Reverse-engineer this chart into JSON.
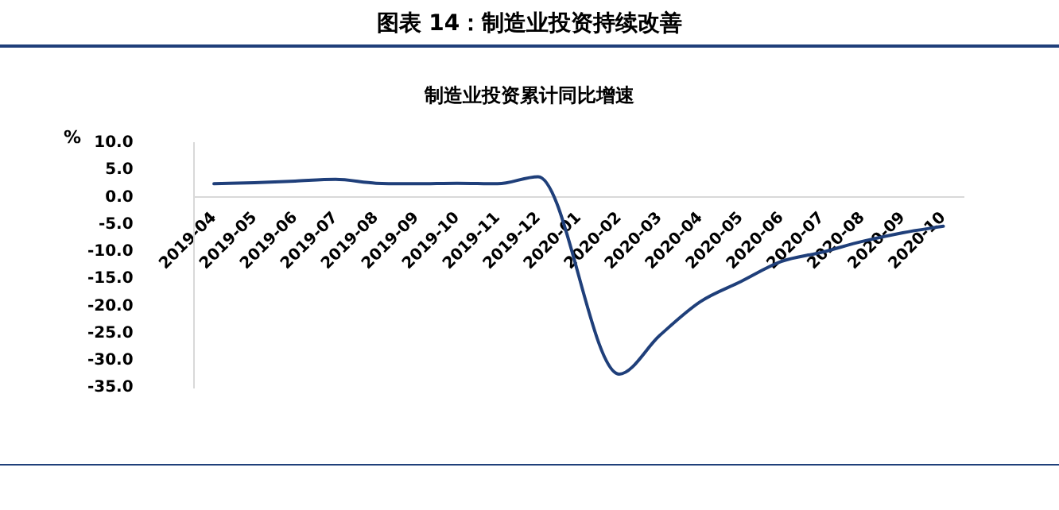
{
  "chart_data": {
    "type": "line",
    "title": "图表 14：制造业投资持续改善",
    "subtitle": "制造业投资累计同比增速",
    "ylabel": "%",
    "categories": [
      "2019-04",
      "2019-05",
      "2019-06",
      "2019-07",
      "2019-08",
      "2019-09",
      "2019-10",
      "2019-11",
      "2019-12",
      "2020-01",
      "2020-02",
      "2020-03",
      "2020-04",
      "2020-05",
      "2020-06",
      "2020-07",
      "2020-08",
      "2020-09",
      "2020-10"
    ],
    "series": [
      {
        "color": "#1f3f7a",
        "values": [
          2.5,
          2.7,
          3.0,
          3.3,
          2.6,
          2.5,
          2.6,
          2.5,
          3.8,
          null,
          -32.5,
          -25.4,
          -19.2,
          -15.5,
          -11.8,
          -10.1,
          -8.1,
          -6.5,
          -5.3
        ]
      }
    ],
    "ylim": [
      -35,
      10
    ],
    "yticks": [
      {
        "value": 10,
        "label": "10.0"
      },
      {
        "value": 5,
        "label": "5.0"
      },
      {
        "value": 0,
        "label": "0.0"
      },
      {
        "value": -5,
        "label": "-5.0"
      },
      {
        "value": -10,
        "label": "-10.0"
      },
      {
        "value": -15,
        "label": "-15.0"
      },
      {
        "value": -20,
        "label": "-20.0"
      },
      {
        "value": -25,
        "label": "-25.0"
      },
      {
        "value": -30,
        "label": "-30.0"
      },
      {
        "value": -35,
        "label": "-35.0"
      }
    ],
    "grid": false,
    "legend": false,
    "marker": "none",
    "line_style": "solid"
  }
}
